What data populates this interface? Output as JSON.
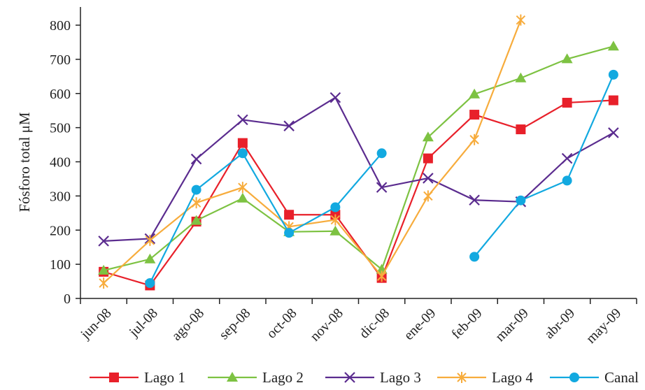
{
  "chart_data": {
    "type": "line",
    "categories": [
      "jun-08",
      "jul-08",
      "ago-08",
      "sep-08",
      "oct-08",
      "nov-08",
      "dic-08",
      "ene-09",
      "feb-09",
      "mar-09",
      "abr-09",
      "may-09"
    ],
    "ylabel": "Fósforo total μM",
    "xlabel": "",
    "ylim": [
      0,
      800
    ],
    "yticks": [
      0,
      100,
      200,
      300,
      400,
      500,
      600,
      700,
      800
    ],
    "grid": false,
    "legend_position": "bottom",
    "series": [
      {
        "name": "Lago 1",
        "color": "#e8202a",
        "marker": "square",
        "values": [
          78,
          38,
          225,
          455,
          245,
          245,
          60,
          410,
          538,
          495,
          573,
          580
        ]
      },
      {
        "name": "Lago 2",
        "color": "#7dc242",
        "marker": "triangle",
        "values": [
          82,
          115,
          228,
          293,
          195,
          197,
          85,
          472,
          598,
          645,
          701,
          738
        ]
      },
      {
        "name": "Lago 3",
        "color": "#5b2c8f",
        "marker": "x",
        "values": [
          168,
          175,
          408,
          523,
          505,
          588,
          325,
          352,
          288,
          283,
          410,
          485
        ]
      },
      {
        "name": "Lago 4",
        "color": "#f7ac3c",
        "marker": "star",
        "values": [
          45,
          170,
          280,
          325,
          210,
          230,
          65,
          300,
          465,
          815,
          null,
          null
        ]
      },
      {
        "name": "Canal",
        "color": "#12a9e0",
        "marker": "circle",
        "values": [
          null,
          45,
          318,
          425,
          192,
          267,
          425,
          null,
          122,
          287,
          345,
          655
        ]
      }
    ]
  }
}
